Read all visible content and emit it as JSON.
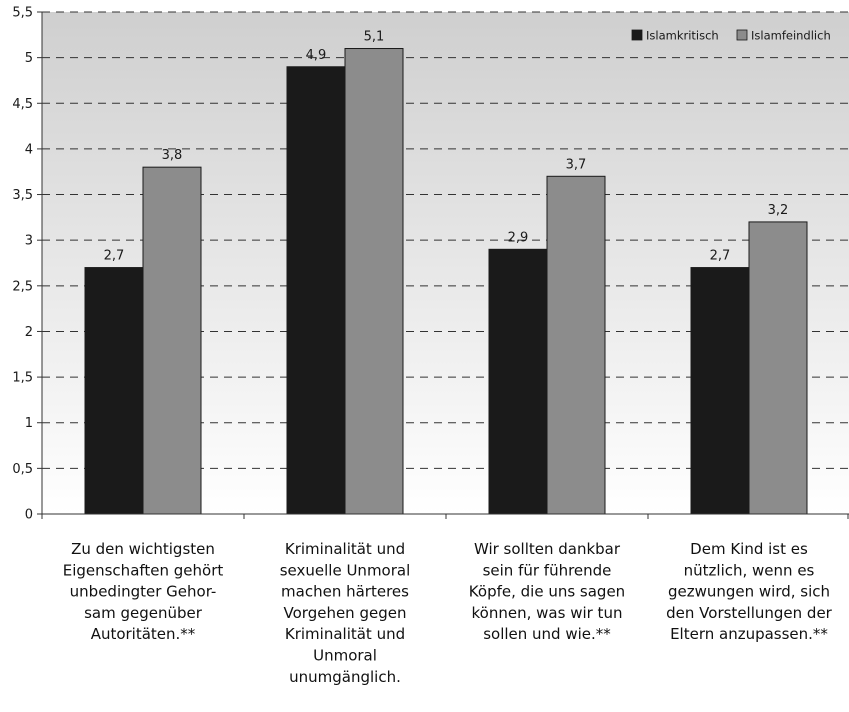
{
  "chart_data": {
    "type": "bar",
    "categories": [
      [
        "Zu den wichtigsten",
        "Eigenschaften gehört",
        "unbedingter Gehor-",
        "sam gegenüber",
        "Autoritäten.**"
      ],
      [
        "Kriminalität und",
        "sexuelle Unmoral",
        "machen härteres",
        "Vorgehen gegen",
        "Kriminalität und",
        "Unmoral",
        "unumgänglich."
      ],
      [
        "Wir sollten dankbar",
        "sein für führende",
        "Köpfe, die uns sagen",
        "können, was wir tun",
        "sollen und wie.**"
      ],
      [
        "Dem Kind ist es",
        "nützlich, wenn es",
        "gezwungen wird, sich",
        "den Vorstellungen der",
        "Eltern anzupassen.**"
      ]
    ],
    "series": [
      {
        "name": "Islamkritisch",
        "values": [
          2.7,
          4.9,
          2.9,
          2.7
        ],
        "labels": [
          "2,7",
          "4,9",
          "2,9",
          "2,7"
        ],
        "color": "#1a1a1a"
      },
      {
        "name": "Islamfeindlich",
        "values": [
          3.8,
          5.1,
          3.7,
          3.2
        ],
        "labels": [
          "3,8",
          "5,1",
          "3,7",
          "3,2"
        ],
        "color": "#8c8c8c"
      }
    ],
    "yticks": [
      0,
      0.5,
      1,
      1.5,
      2,
      2.5,
      3,
      3.5,
      4,
      4.5,
      5,
      5.5
    ],
    "ytick_labels": [
      "0",
      "0,5",
      "1",
      "1,5",
      "2",
      "2,5",
      "3",
      "3,5",
      "4",
      "4,5",
      "5",
      "5,5"
    ],
    "ylim": [
      0,
      5.5
    ],
    "grid": true,
    "grid_style": "dashed",
    "legend_position": "top-right",
    "background": "gradient-gray-to-white"
  }
}
